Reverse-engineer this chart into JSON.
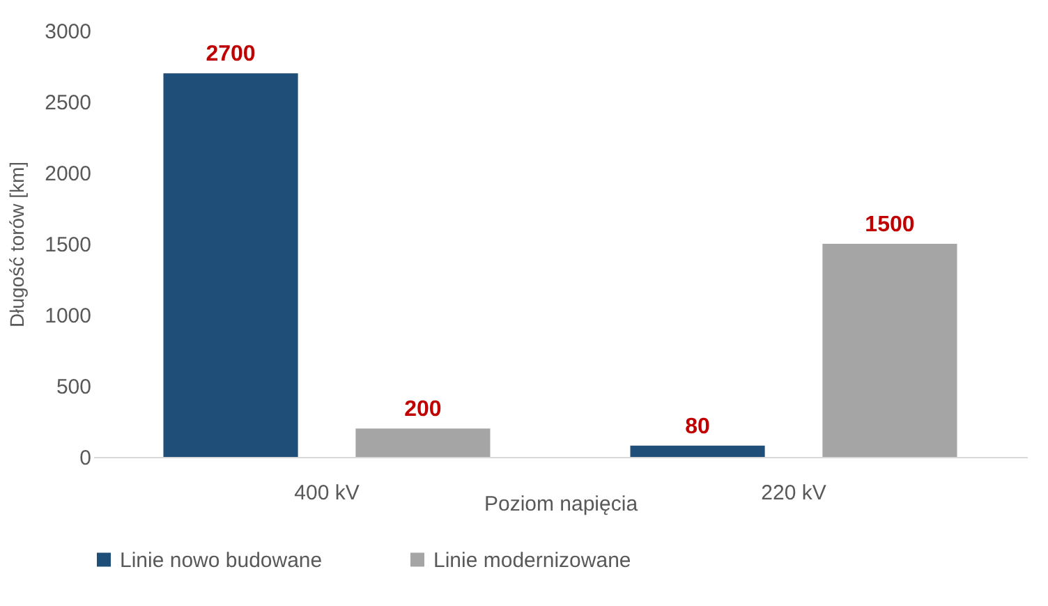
{
  "chart_data": {
    "type": "bar",
    "xlabel": "Poziom napięcia",
    "ylabel": "Długość torów [km]",
    "categories": [
      "400 kV",
      "220 kV"
    ],
    "series": [
      {
        "name": "Linie nowo budowane",
        "color": "#1f4e79",
        "values": [
          2700,
          80
        ]
      },
      {
        "name": "Linie modernizowane",
        "color": "#a5a5a5",
        "values": [
          200,
          1500
        ]
      }
    ],
    "ylim": [
      0,
      3000
    ],
    "yticks": [
      0,
      500,
      1000,
      1500,
      2000,
      2500,
      3000
    ],
    "grid": false,
    "legend": "bottom",
    "data_labels": true
  }
}
